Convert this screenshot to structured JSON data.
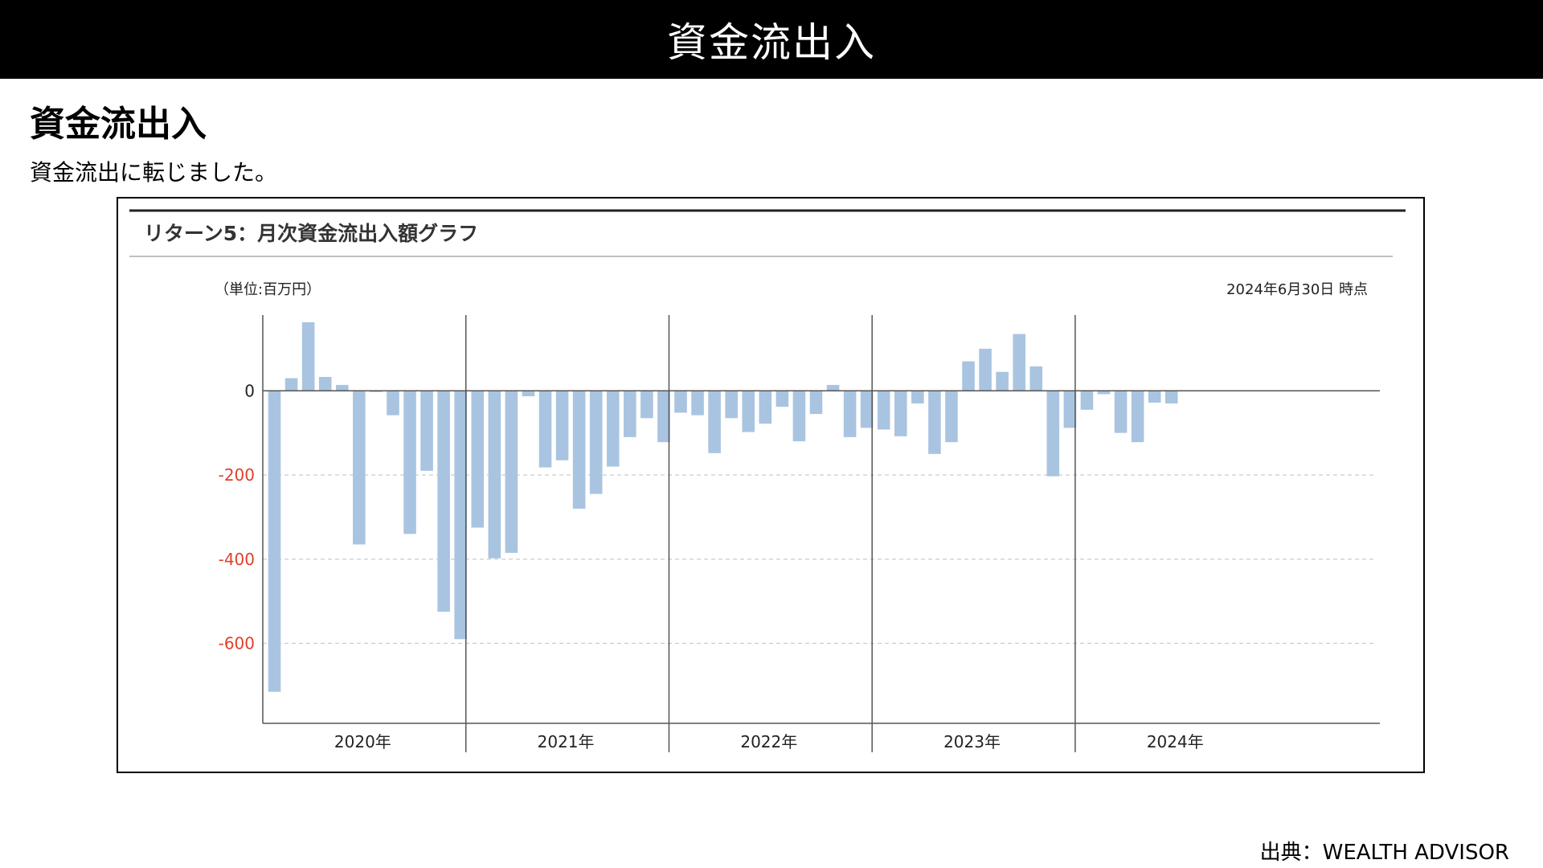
{
  "header": {
    "title": "資金流出入"
  },
  "section": {
    "heading": "資金流出入",
    "description": "資金流出に転じました。"
  },
  "chart_panel": {
    "title": "リターン5：月次資金流出入額グラフ",
    "unit_label": "（単位:百万円）",
    "as_of": "2024年6月30日 時点"
  },
  "source": "出典：WEALTH ADVISOR",
  "colors": {
    "bar": "#a9c4e0",
    "negative_tick": "#e0402a",
    "axis": "#555555",
    "grid": "#cccccc"
  },
  "chart_data": {
    "type": "bar",
    "ylim": [
      -790,
      180
    ],
    "y_ticks": [
      0,
      -200,
      -400,
      -600
    ],
    "grid": "dashed-horizontal",
    "year_groups": [
      "2020年",
      "2021年",
      "2022年",
      "2023年",
      "2024年"
    ],
    "values": [
      -715,
      30,
      163,
      33,
      14,
      -365,
      -3,
      -58,
      -340,
      -190,
      -525,
      -590,
      -325,
      -398,
      -385,
      -13,
      -182,
      -165,
      -280,
      -245,
      -180,
      -110,
      -65,
      -122,
      -52,
      -58,
      -148,
      -65,
      -98,
      -78,
      -38,
      -120,
      -55,
      14,
      -110,
      -88,
      -92,
      -108,
      -30,
      -150,
      -122,
      70,
      100,
      45,
      135,
      58,
      -203,
      -88,
      -45,
      -8,
      -100,
      -122,
      -28,
      -30
    ]
  }
}
